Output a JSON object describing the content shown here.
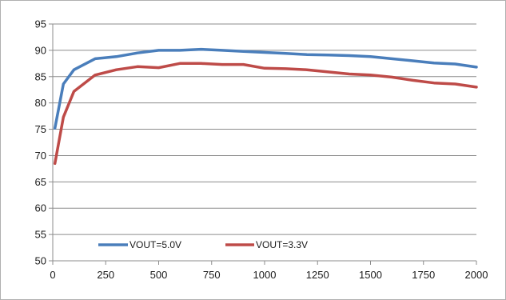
{
  "chart_data": {
    "type": "line",
    "title": "",
    "xlabel": "",
    "ylabel": "",
    "xlim": [
      0,
      2000
    ],
    "ylim": [
      50,
      95
    ],
    "x_ticks": [
      0,
      250,
      500,
      750,
      1000,
      1250,
      1500,
      1750,
      2000
    ],
    "y_ticks": [
      50,
      55,
      60,
      65,
      70,
      75,
      80,
      85,
      90,
      95
    ],
    "grid": "horizontal",
    "legend_position": "bottom-inside",
    "series": [
      {
        "name": "VOUT=5.0V",
        "color": "#4a7ebb",
        "x": [
          10,
          50,
          100,
          200,
          300,
          400,
          500,
          600,
          700,
          800,
          900,
          1000,
          1100,
          1200,
          1300,
          1400,
          1500,
          1600,
          1700,
          1800,
          1900,
          2000
        ],
        "y": [
          75.2,
          83.6,
          86.3,
          88.4,
          88.8,
          89.5,
          90.0,
          90.0,
          90.2,
          90.0,
          89.8,
          89.6,
          89.4,
          89.2,
          89.1,
          89.0,
          88.8,
          88.4,
          88.0,
          87.6,
          87.4,
          86.8
        ]
      },
      {
        "name": "VOUT=3.3V",
        "color": "#be4b48",
        "x": [
          10,
          50,
          100,
          200,
          300,
          400,
          500,
          600,
          700,
          800,
          900,
          1000,
          1100,
          1200,
          1300,
          1400,
          1500,
          1600,
          1700,
          1800,
          1900,
          2000
        ],
        "y": [
          68.5,
          77.3,
          82.2,
          85.3,
          86.3,
          86.9,
          86.7,
          87.5,
          87.5,
          87.3,
          87.3,
          86.6,
          86.5,
          86.3,
          85.9,
          85.5,
          85.3,
          84.9,
          84.3,
          83.8,
          83.6,
          83.0
        ]
      }
    ]
  }
}
